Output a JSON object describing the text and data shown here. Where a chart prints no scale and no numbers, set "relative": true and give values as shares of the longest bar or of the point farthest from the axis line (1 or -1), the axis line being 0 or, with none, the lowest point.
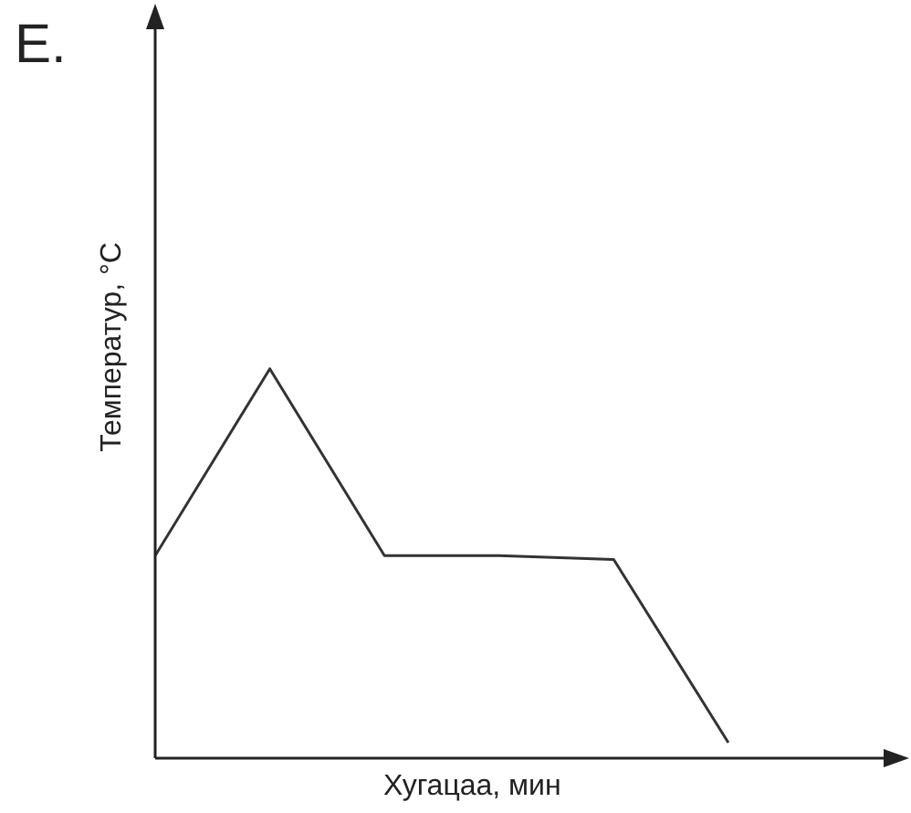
{
  "chart_data": {
    "type": "line",
    "title": "E.",
    "xlabel": "Хугацаа, мин",
    "ylabel": "Температур, °С",
    "relative": true,
    "categories": [
      null,
      null,
      null,
      null,
      null,
      null
    ],
    "series": [
      {
        "color": "#333333",
        "values": [
          0.52,
          1,
          0.52,
          0.52,
          0.51,
          0.04
        ]
      }
    ],
    "grid": false,
    "marker": "none",
    "line_style": "solid"
  }
}
